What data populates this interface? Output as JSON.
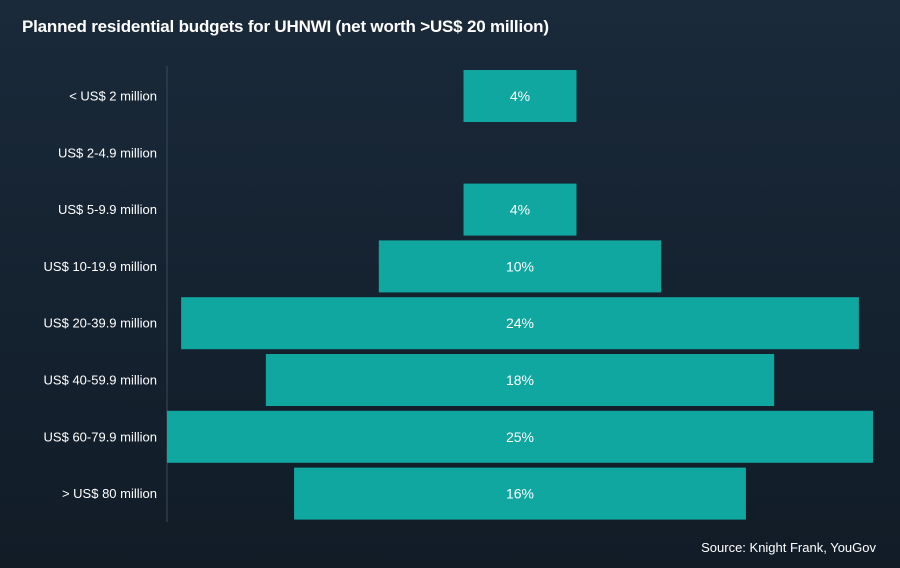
{
  "colors": {
    "background": "#152230",
    "bar": "#0fa7a0",
    "text": "#ffffff",
    "axis": "#3a4a5a"
  },
  "source": "Source: Knight Frank, YouGov",
  "chart_data": {
    "type": "bar",
    "orientation": "horizontal-centered",
    "title": "Planned residential budgets for UHNWI (net worth >US$ 20 million)",
    "xlabel": "",
    "ylabel": "",
    "categories": [
      "< US$ 2 million",
      "US$ 2-4.9 million",
      "US$ 5-9.9 million",
      "US$ 10-19.9 million",
      "US$ 20-39.9 million",
      "US$ 40-59.9 million",
      "US$ 60-79.9 million",
      "> US$ 80 million"
    ],
    "values": [
      4,
      0,
      4,
      10,
      24,
      18,
      25,
      16
    ],
    "value_labels": [
      "4%",
      "",
      "4%",
      "10%",
      "24%",
      "18%",
      "25%",
      "16%"
    ],
    "unit": "%",
    "xlim": [
      0,
      25
    ]
  }
}
